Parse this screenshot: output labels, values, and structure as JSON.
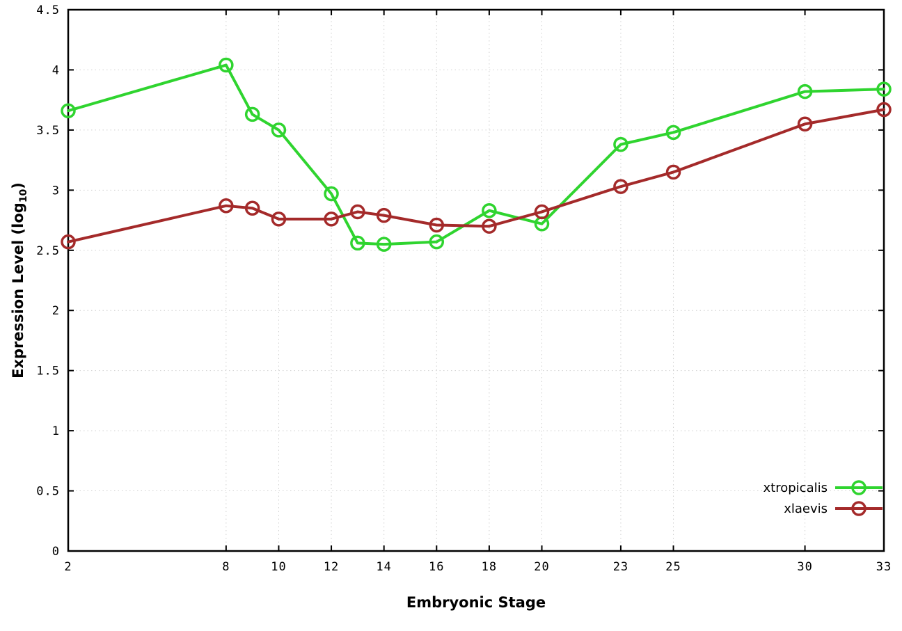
{
  "chart_data": {
    "type": "line",
    "title": "",
    "xlabel": "Embryonic Stage",
    "ylabel": "Expression Level (log10)",
    "ylabel_main": "Expression Level (log",
    "ylabel_sub": "10",
    "ylabel_end": ")",
    "xlim": [
      2,
      33
    ],
    "ylim": [
      0,
      4.5
    ],
    "grid": true,
    "grid_style": "dotted",
    "grid_color": "#cfcfcf",
    "axis_color": "#000000",
    "legend_position": "bottom-right",
    "x": [
      2,
      8,
      9,
      10,
      12,
      13,
      14,
      16,
      18,
      20,
      23,
      25,
      30,
      33
    ],
    "xticks": [
      2,
      8,
      10,
      12,
      14,
      16,
      18,
      20,
      23,
      25,
      30,
      33
    ],
    "xtick_labels": [
      "2",
      "8",
      "10",
      "12",
      "14",
      "16",
      "18",
      "20",
      "23",
      "25",
      "30",
      "33"
    ],
    "yticks": [
      0,
      0.5,
      1,
      1.5,
      2,
      2.5,
      3,
      3.5,
      4,
      4.5
    ],
    "ytick_labels": [
      "0",
      "0.5",
      "1",
      "1.5",
      "2",
      "2.5",
      "3",
      "3.5",
      "4",
      "4.5"
    ],
    "series": [
      {
        "name": "xtropicalis",
        "color": "#2fd42f",
        "values": [
          3.66,
          4.04,
          3.63,
          3.5,
          2.97,
          2.56,
          2.55,
          2.57,
          2.83,
          2.72,
          3.38,
          3.48,
          3.82,
          3.84
        ]
      },
      {
        "name": "xlaevis",
        "color": "#a42a2a",
        "values": [
          2.57,
          2.87,
          2.85,
          2.76,
          2.76,
          2.82,
          2.79,
          2.71,
          2.7,
          2.82,
          3.03,
          3.15,
          3.55,
          3.67
        ]
      }
    ]
  }
}
